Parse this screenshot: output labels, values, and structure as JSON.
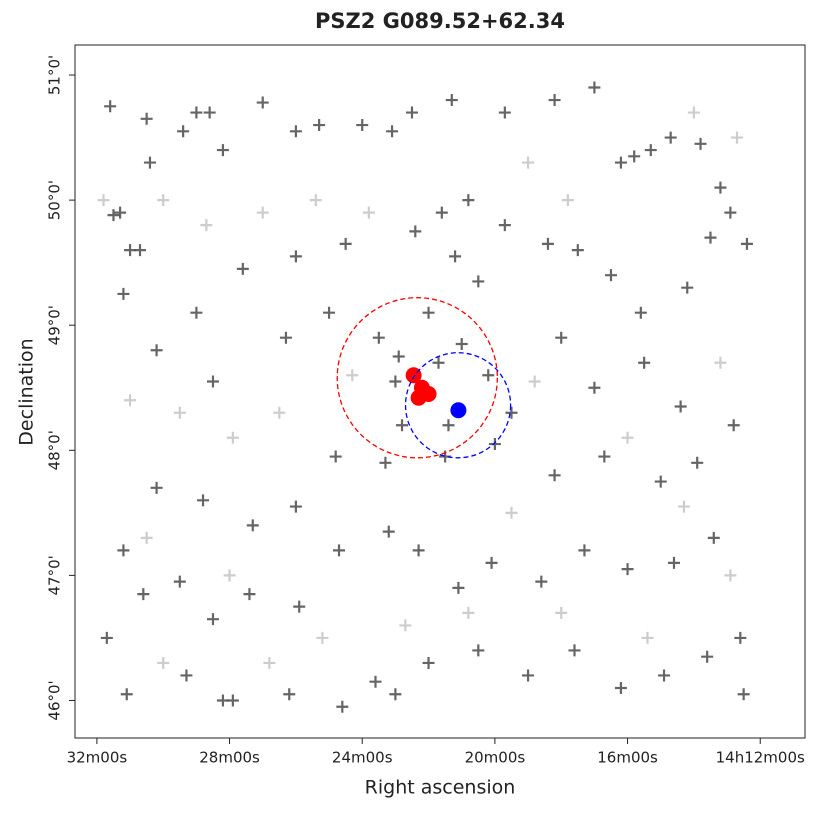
{
  "chart_data": {
    "type": "scatter",
    "title": "PSZ2 G089.52+62.34",
    "xlabel": "Right ascension",
    "ylabel": "Declination",
    "xlim": [
      32.66,
      10.65
    ],
    "ylim": [
      45.7,
      51.24
    ],
    "xticks": [
      {
        "value": 32,
        "label": "32m00s"
      },
      {
        "value": 28,
        "label": "28m00s"
      },
      {
        "value": 24,
        "label": "24m00s"
      },
      {
        "value": 20,
        "label": "20m00s"
      },
      {
        "value": 16,
        "label": "16m00s"
      },
      {
        "value": 12,
        "label": "14h12m00s"
      }
    ],
    "yticks": [
      {
        "value": 46,
        "label": "46°0'"
      },
      {
        "value": 47,
        "label": "47°0'"
      },
      {
        "value": 48,
        "label": "48°0'"
      },
      {
        "value": 49,
        "label": "49°0'"
      },
      {
        "value": 50,
        "label": "50°0'"
      },
      {
        "value": 51,
        "label": "51°0'"
      }
    ],
    "series": [
      {
        "color": "#555555",
        "marker": "+",
        "x": [
          31.6,
          31.3,
          31.5,
          30.7,
          31.0,
          31.2,
          30.4,
          30.5,
          29.4,
          29.0,
          28.6,
          28.2,
          27.0,
          26.0,
          25.3,
          24.0,
          23.1,
          22.5,
          21.3,
          19.7,
          18.2,
          17.0,
          16.2,
          15.8,
          15.3,
          14.7,
          13.8,
          13.2,
          12.9,
          12.4,
          13.5,
          14.2,
          15.6,
          16.5,
          17.5,
          18.4,
          19.7,
          20.8,
          21.6,
          22.4,
          21.2,
          20.5,
          24.5,
          26.0,
          27.6,
          29.0,
          30.2,
          28.5,
          26.3,
          25.0,
          23.5,
          23.0,
          22.8,
          21.7,
          20.2,
          19.5,
          18.0,
          17.0,
          15.5,
          14.4,
          12.8,
          13.9,
          15.0,
          16.7,
          18.2,
          20.0,
          21.5,
          23.3,
          24.8,
          26.0,
          27.3,
          28.8,
          30.2,
          31.2,
          30.6,
          29.5,
          28.5,
          27.4,
          25.9,
          24.7,
          23.2,
          22.3,
          21.1,
          20.1,
          18.6,
          17.3,
          16.0,
          14.6,
          13.4,
          12.6,
          13.6,
          14.9,
          16.2,
          17.6,
          19.0,
          20.5,
          22.0,
          23.0,
          23.6,
          24.6,
          26.2,
          27.9,
          28.2,
          29.3,
          31.1,
          31.7,
          12.5,
          21.4,
          22.9,
          22.0,
          21.0
        ],
        "y": [
          50.75,
          49.9,
          49.88,
          49.6,
          49.6,
          49.25,
          50.3,
          50.65,
          50.55,
          50.7,
          50.7,
          50.4,
          50.78,
          50.55,
          50.6,
          50.6,
          50.55,
          50.7,
          50.8,
          50.7,
          50.8,
          50.9,
          50.3,
          50.35,
          50.4,
          50.5,
          50.45,
          50.1,
          49.9,
          49.65,
          49.7,
          49.3,
          49.1,
          49.4,
          49.6,
          49.65,
          49.8,
          50.0,
          49.9,
          49.75,
          49.55,
          49.35,
          49.65,
          49.55,
          49.45,
          49.1,
          48.8,
          48.55,
          48.9,
          49.1,
          48.9,
          48.55,
          48.2,
          48.7,
          48.6,
          48.3,
          48.9,
          48.5,
          48.7,
          48.35,
          48.2,
          47.9,
          47.75,
          47.95,
          47.8,
          48.05,
          47.95,
          47.9,
          47.95,
          47.55,
          47.4,
          47.6,
          47.7,
          47.2,
          46.85,
          46.95,
          46.65,
          46.85,
          46.75,
          47.2,
          47.35,
          47.2,
          46.9,
          47.1,
          46.95,
          47.2,
          47.05,
          47.1,
          47.3,
          46.5,
          46.35,
          46.2,
          46.1,
          46.4,
          46.2,
          46.4,
          46.3,
          46.05,
          46.15,
          45.95,
          46.05,
          46.0,
          46.0,
          46.2,
          46.05,
          46.5,
          46.05,
          48.2,
          48.75,
          49.1,
          48.85
        ]
      },
      {
        "color": "#c8c8c8",
        "marker": "+",
        "x": [
          31.8,
          30.0,
          28.7,
          27.0,
          25.4,
          23.8,
          19.0,
          17.8,
          14.0,
          12.7,
          31.0,
          29.5,
          27.9,
          26.5,
          24.3,
          18.8,
          16.0,
          13.2,
          30.5,
          28.0,
          25.2,
          22.7,
          20.8,
          18.0,
          15.4,
          12.9,
          30.0,
          26.8,
          19.5,
          14.3
        ],
        "y": [
          50.0,
          50.0,
          49.8,
          49.9,
          50.0,
          49.9,
          50.3,
          50.0,
          50.7,
          50.5,
          48.4,
          48.3,
          48.1,
          48.3,
          48.6,
          48.55,
          48.1,
          48.7,
          47.3,
          47.0,
          46.5,
          46.6,
          46.7,
          46.7,
          46.5,
          47.0,
          46.3,
          46.3,
          47.5,
          47.55
        ]
      },
      {
        "color": "#ff0000",
        "marker": "o",
        "x": [
          22.45,
          22.2,
          22.0,
          22.3
        ],
        "y": [
          48.6,
          48.5,
          48.45,
          48.42
        ]
      },
      {
        "color": "#0000ff",
        "marker": "o",
        "x": [
          21.1
        ],
        "y": [
          48.32
        ]
      }
    ],
    "circles": [
      {
        "color": "#ff0000",
        "x": 22.34,
        "y": 48.58,
        "radius": 0.64
      },
      {
        "color": "#0000ff",
        "x": 21.11,
        "y": 48.36,
        "radius": 0.42
      }
    ]
  }
}
